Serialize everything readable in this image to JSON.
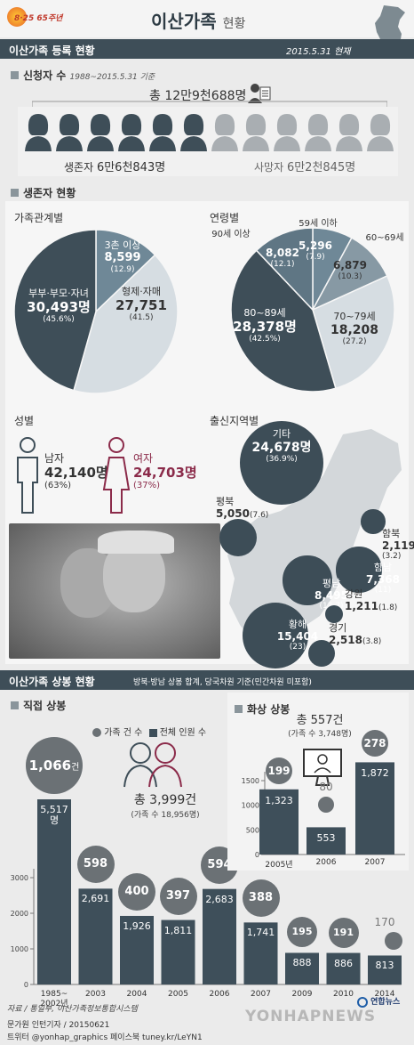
{
  "badge": "8·25 65주년",
  "title": "이산가족",
  "title_suffix": "현황",
  "reg": {
    "title": "이산가족 등록 현황",
    "date": "2015.5.31 현재"
  },
  "applicants": {
    "title": "신청자 수",
    "subtitle": "1988~2015.5.31 기준",
    "total": "총 12만9천688명",
    "alive_prefix": "생존자",
    "alive_value": "6만6천843명",
    "dead_prefix": "사망자",
    "dead_value": "6만2천845명",
    "alive_icons": 6,
    "dead_icons": 6
  },
  "survivors": {
    "title": "생존자 현황"
  },
  "charts": {
    "relation": {
      "title": "가족관계별"
    },
    "age": {
      "title": "연령별"
    },
    "gender": {
      "title": "성별",
      "male_label": "남자",
      "male_value": "42,140명",
      "male_pct": "(63%)",
      "female_label": "여자",
      "female_value": "24,703명",
      "female_pct": "(37%)"
    },
    "region": {
      "title": "출신지역별"
    }
  },
  "reunion": {
    "title": "이산가족 상봉 현황",
    "note": "방북·방남 상봉 합계, 당국차원 기준(민간차원 미포함)"
  },
  "direct": {
    "title": "직접 상봉",
    "legend_cases": "가족 건 수",
    "legend_people": "전체 인원 수",
    "total": "총 3,999건",
    "total_sub": "(가족 수 18,956명)",
    "first_people": "5,517",
    "first_unit": "명",
    "first_cases_unit": "건"
  },
  "video": {
    "title": "화상 상봉",
    "total": "총 557건",
    "total_sub": "(가족 수 3,748명)"
  },
  "footer": {
    "source": "자료 / 통일부, 이산가족정보통합시스템",
    "author": "문가원 인턴기자 / 20150621",
    "sns": "트위터 @yonhap_graphics  페이스북 tuney.kr/LeYN1",
    "brand": "연합뉴스",
    "watermark": "YONHAPNEWS"
  },
  "colors": {
    "dark": "#3e4e58",
    "mid": "#6f8897",
    "light": "#d6dde2",
    "accent": "#8b2b4a"
  },
  "chart_data": [
    {
      "type": "pie",
      "title": "가족관계별",
      "labels": [
        "3촌 이상",
        "형제·자매",
        "부부·부모·자녀"
      ],
      "values": [
        8599,
        27751,
        30493
      ],
      "value_labels": [
        "8,599",
        "27,751",
        "30,493명"
      ],
      "percent_labels": [
        "(12.9)",
        "(41.5)",
        "(45.6%)"
      ]
    },
    {
      "type": "pie",
      "title": "연령별",
      "labels": [
        "59세 이하",
        "60~69세",
        "70~79세",
        "80~89세",
        "90세 이상"
      ],
      "values": [
        5296,
        6879,
        18208,
        28378,
        8082
      ],
      "value_labels": [
        "5,296",
        "6,879",
        "18,208",
        "28,378명",
        "8,082"
      ],
      "percent_labels": [
        "(7.9)",
        "(10.3)",
        "(27.2)",
        "(42.5%)",
        "(12.1)"
      ]
    },
    {
      "type": "bar",
      "title": "출신지역별",
      "categories": [
        "기타",
        "평북",
        "함북",
        "함남",
        "평남",
        "강원",
        "황해",
        "경기"
      ],
      "values": [
        24678,
        5050,
        2119,
        7368,
        8495,
        1211,
        15404,
        2518
      ],
      "value_labels": [
        "24,678명",
        "5,050",
        "2,119",
        "7,368",
        "8,495",
        "1,211",
        "15,404",
        "2,518"
      ],
      "percent_labels": [
        "(36.9%)",
        "(7.6)",
        "(3.2)",
        "(11)",
        "(12.7)",
        "(1.8)",
        "(23)",
        "(3.8)"
      ]
    },
    {
      "type": "bar",
      "title": "직접 상봉",
      "categories": [
        "1985~2002년",
        "2003",
        "2004",
        "2005",
        "2006",
        "2007",
        "2009",
        "2010",
        "2014"
      ],
      "series": [
        {
          "name": "전체 인원 수",
          "values": [
            5517,
            2691,
            1926,
            1811,
            2683,
            1741,
            888,
            886,
            813
          ]
        },
        {
          "name": "가족 건 수",
          "values": [
            1066,
            598,
            400,
            397,
            594,
            388,
            195,
            191,
            170
          ]
        }
      ],
      "yticks": [
        "0",
        "1000",
        "2000",
        "3000"
      ],
      "ylim": [
        0,
        6000
      ]
    },
    {
      "type": "bar",
      "title": "화상 상봉",
      "categories": [
        "2005년",
        "2006",
        "2007"
      ],
      "series": [
        {
          "name": "전체 인원 수",
          "values": [
            1323,
            553,
            1872
          ]
        },
        {
          "name": "가족 건 수",
          "values": [
            199,
            80,
            278
          ]
        }
      ],
      "yticks": [
        "0",
        "500",
        "1000",
        "1500"
      ],
      "ylim": [
        0,
        2000
      ]
    }
  ]
}
